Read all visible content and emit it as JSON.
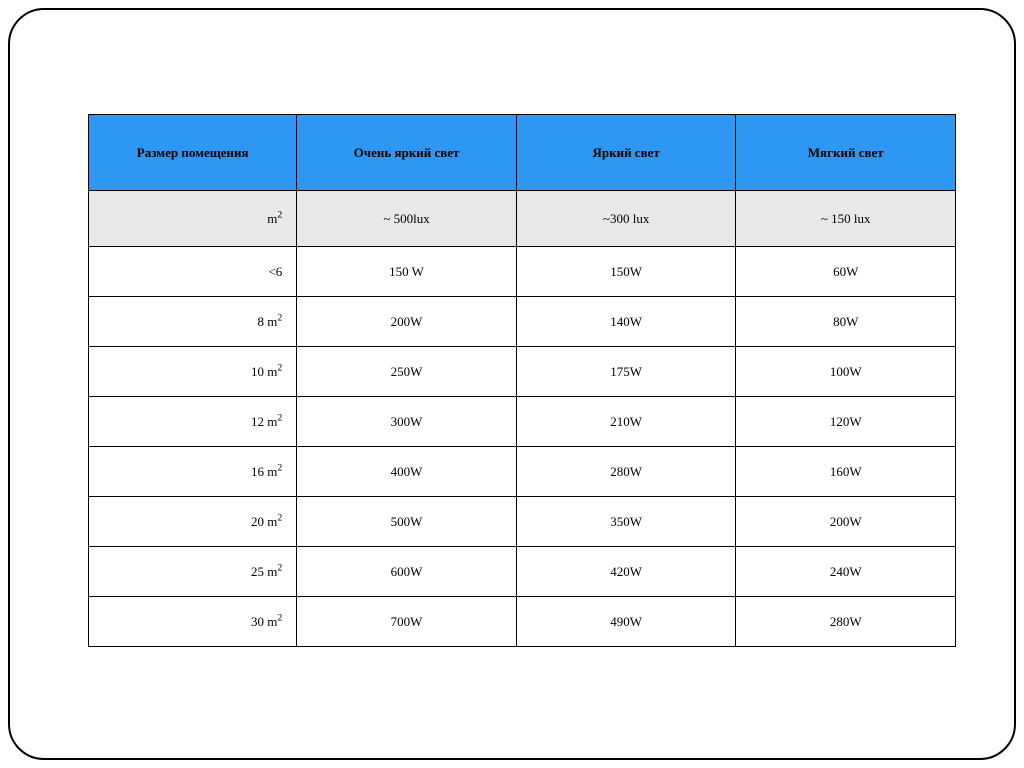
{
  "table": {
    "header_bg": "#2e97f2",
    "header_text_color": "#000000",
    "subheader_bg": "#e8e8e8",
    "row_bg": "#ffffff",
    "border_color": "#000000",
    "columns": [
      "Размер помещения",
      "Очень яркий свет",
      "Яркий свет",
      "Мягкий свет"
    ],
    "subheader": {
      "unit_base": "m",
      "unit_sup": "2",
      "values": [
        "~ 500lux",
        "~300 lux",
        "~ 150 lux"
      ]
    },
    "rows": [
      {
        "size_base": "<6",
        "size_sup": "",
        "cells": [
          "150 W",
          "150W",
          "60W"
        ]
      },
      {
        "size_base": "8 m",
        "size_sup": "2",
        "cells": [
          "200W",
          "140W",
          "80W"
        ]
      },
      {
        "size_base": "10 m",
        "size_sup": "2",
        "cells": [
          "250W",
          "175W",
          "100W"
        ]
      },
      {
        "size_base": "12 m",
        "size_sup": "2",
        "cells": [
          "300W",
          "210W",
          "120W"
        ]
      },
      {
        "size_base": "16 m",
        "size_sup": "2",
        "cells": [
          "400W",
          "280W",
          "160W"
        ]
      },
      {
        "size_base": "20 m",
        "size_sup": "2",
        "cells": [
          "500W",
          "350W",
          "200W"
        ]
      },
      {
        "size_base": "25 m",
        "size_sup": "2",
        "cells": [
          "600W",
          "420W",
          "240W"
        ]
      },
      {
        "size_base": "30 m",
        "size_sup": "2",
        "cells": [
          "700W",
          "490W",
          "280W"
        ]
      }
    ]
  }
}
